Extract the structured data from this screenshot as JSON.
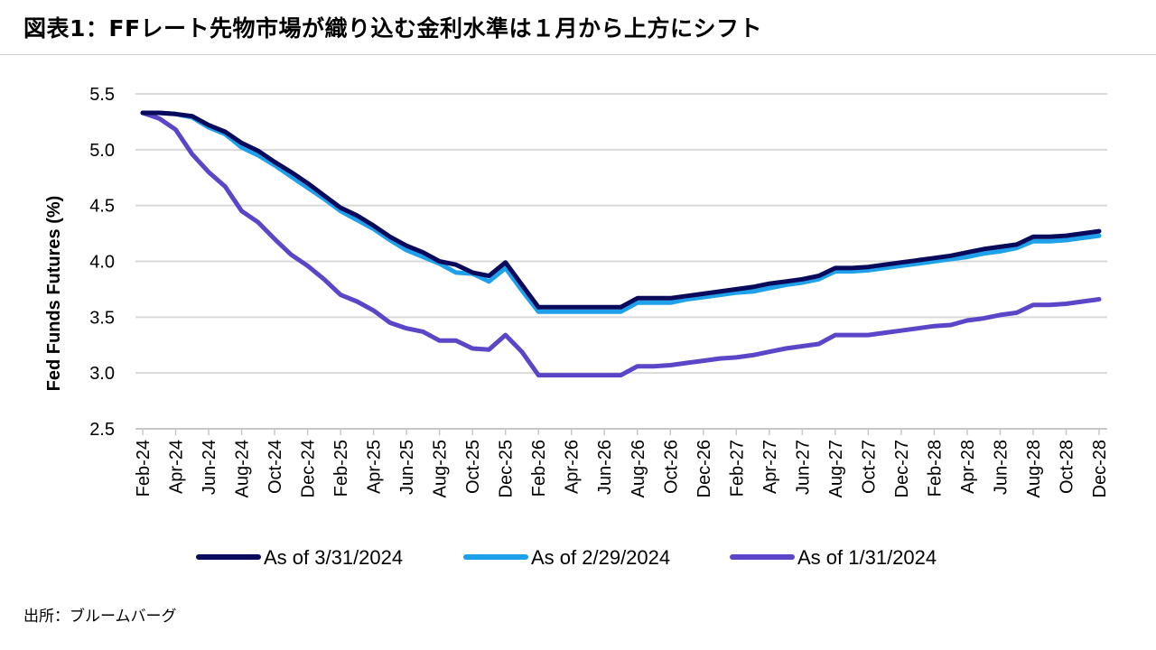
{
  "title": "図表1：FFレート先物市場が織り込む金利水準は１月から上方にシフト",
  "source": "出所：ブルームバーグ",
  "chart_data": {
    "type": "line",
    "ylabel": "Fed Funds Futures (%)",
    "xlabel": "",
    "ylim": [
      2.5,
      5.5
    ],
    "yticks": [
      "2.5",
      "3.0",
      "3.5",
      "4.0",
      "4.5",
      "5.0",
      "5.5"
    ],
    "grid": true,
    "legend_position": "bottom",
    "categories": [
      "Feb-24",
      "Mar-24",
      "Apr-24",
      "May-24",
      "Jun-24",
      "Jul-24",
      "Aug-24",
      "Sep-24",
      "Oct-24",
      "Nov-24",
      "Dec-24",
      "Jan-25",
      "Feb-25",
      "Mar-25",
      "Apr-25",
      "May-25",
      "Jun-25",
      "Jul-25",
      "Aug-25",
      "Sep-25",
      "Oct-25",
      "Nov-25",
      "Dec-25",
      "Jan-26",
      "Feb-26",
      "Mar-26",
      "Apr-26",
      "May-26",
      "Jun-26",
      "Jul-26",
      "Aug-26",
      "Sep-26",
      "Oct-26",
      "Nov-26",
      "Dec-26",
      "Jan-27",
      "Feb-27",
      "Mar-27",
      "Apr-27",
      "May-27",
      "Jun-27",
      "Jul-27",
      "Aug-27",
      "Sep-27",
      "Oct-27",
      "Nov-27",
      "Dec-27",
      "Jan-28",
      "Feb-28",
      "Mar-28",
      "Apr-28",
      "May-28",
      "Jun-28",
      "Jul-28",
      "Aug-28",
      "Sep-28",
      "Oct-28",
      "Nov-28",
      "Dec-28"
    ],
    "xtick_labels": [
      "Feb-24",
      "Apr-24",
      "Jun-24",
      "Aug-24",
      "Oct-24",
      "Dec-24",
      "Feb-25",
      "Apr-25",
      "Jun-25",
      "Aug-25",
      "Oct-25",
      "Dec-25",
      "Feb-26",
      "Apr-26",
      "Jun-26",
      "Aug-26",
      "Oct-26",
      "Dec-26",
      "Feb-27",
      "Apr-27",
      "Jun-27",
      "Aug-27",
      "Oct-27",
      "Dec-27",
      "Feb-28",
      "Apr-28",
      "Jun-28",
      "Aug-28",
      "Oct-28",
      "Dec-28"
    ],
    "series": [
      {
        "name": "As of 3/31/2024",
        "color": "#0a0a5c",
        "values": [
          5.33,
          5.33,
          5.32,
          5.3,
          5.22,
          5.16,
          5.06,
          4.99,
          4.89,
          4.8,
          4.7,
          4.59,
          4.48,
          4.41,
          4.32,
          4.22,
          4.14,
          4.08,
          4.0,
          3.97,
          3.9,
          3.87,
          3.99,
          3.79,
          3.59,
          3.59,
          3.59,
          3.59,
          3.59,
          3.59,
          3.67,
          3.67,
          3.67,
          3.69,
          3.71,
          3.73,
          3.75,
          3.77,
          3.8,
          3.82,
          3.84,
          3.87,
          3.94,
          3.94,
          3.95,
          3.97,
          3.99,
          4.01,
          4.03,
          4.05,
          4.08,
          4.11,
          4.13,
          4.15,
          4.22,
          4.22,
          4.23,
          4.25,
          4.27
        ]
      },
      {
        "name": "As of 2/29/2024",
        "color": "#1ea0ea",
        "values": [
          5.33,
          5.33,
          5.32,
          5.29,
          5.2,
          5.14,
          5.02,
          4.95,
          4.86,
          4.76,
          4.66,
          4.56,
          4.45,
          4.37,
          4.29,
          4.19,
          4.1,
          4.04,
          3.98,
          3.9,
          3.89,
          3.82,
          3.94,
          3.74,
          3.55,
          3.55,
          3.55,
          3.55,
          3.55,
          3.55,
          3.63,
          3.63,
          3.63,
          3.66,
          3.68,
          3.7,
          3.72,
          3.73,
          3.76,
          3.79,
          3.81,
          3.84,
          3.91,
          3.91,
          3.92,
          3.94,
          3.96,
          3.98,
          4.0,
          4.02,
          4.04,
          4.07,
          4.09,
          4.12,
          4.18,
          4.18,
          4.19,
          4.21,
          4.23
        ]
      },
      {
        "name": "As of 1/31/2024",
        "color": "#5b45c8",
        "values": [
          5.33,
          5.28,
          5.18,
          4.96,
          4.8,
          4.67,
          4.45,
          4.35,
          4.2,
          4.06,
          3.96,
          3.84,
          3.7,
          3.64,
          3.56,
          3.45,
          3.4,
          3.37,
          3.29,
          3.29,
          3.22,
          3.21,
          3.34,
          3.19,
          2.98,
          2.98,
          2.98,
          2.98,
          2.98,
          2.98,
          3.06,
          3.06,
          3.07,
          3.09,
          3.11,
          3.13,
          3.14,
          3.16,
          3.19,
          3.22,
          3.24,
          3.26,
          3.34,
          3.34,
          3.34,
          3.36,
          3.38,
          3.4,
          3.42,
          3.43,
          3.47,
          3.49,
          3.52,
          3.54,
          3.61,
          3.61,
          3.62,
          3.64,
          3.66
        ]
      }
    ]
  }
}
